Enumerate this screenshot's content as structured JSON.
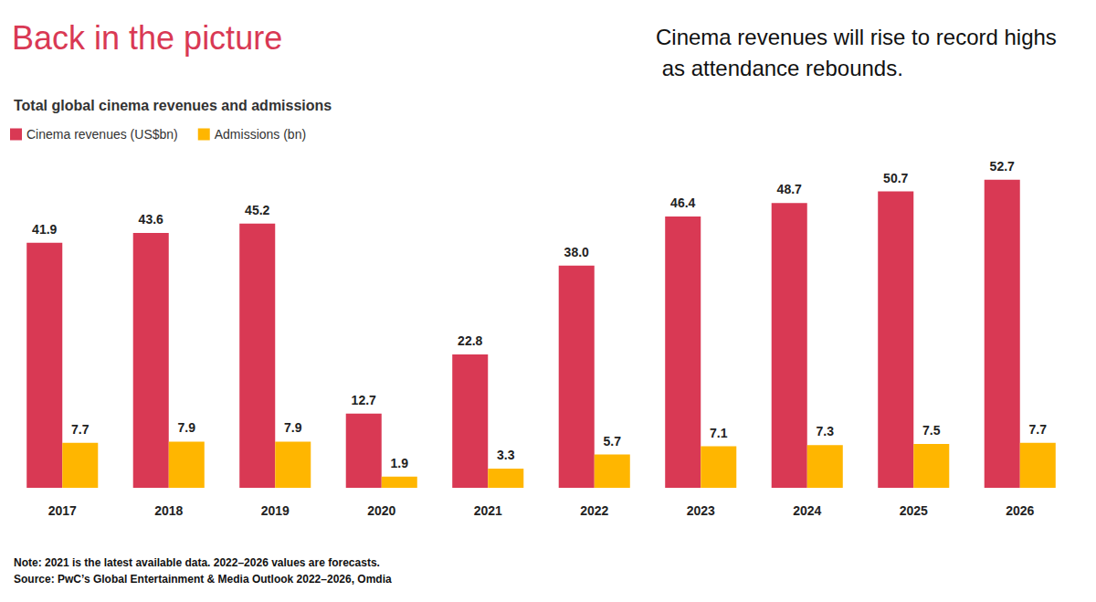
{
  "chart_data": {
    "type": "bar",
    "title": "Back in the picture",
    "subtitle": "Total global cinema revenues and admissions",
    "annotation": "Cinema revenues will rise to record highs as attendance rebounds.",
    "note": "Note: 2021 is the latest available data. 2022–2026 values are forecasts.",
    "source": "Source: PwC’s Global Entertainment & Media Outlook 2022–2026, Omdia",
    "categories": [
      "2017",
      "2018",
      "2019",
      "2020",
      "2021",
      "2022",
      "2023",
      "2024",
      "2025",
      "2026"
    ],
    "series": [
      {
        "name": "Cinema revenues (US$bn)",
        "color": "#d93954",
        "values": [
          41.9,
          43.6,
          45.2,
          12.7,
          22.8,
          38.0,
          46.4,
          48.7,
          50.7,
          52.7
        ],
        "value_labels": [
          "41.9",
          "43.6",
          "45.2",
          "12.7",
          "22.8",
          "38.0",
          "46.4",
          "48.7",
          "50.7",
          "52.7"
        ]
      },
      {
        "name": "Admissions (bn)",
        "color": "#ffb600",
        "values": [
          7.7,
          7.9,
          7.9,
          1.9,
          3.3,
          5.7,
          7.1,
          7.3,
          7.5,
          7.7
        ]
      }
    ],
    "ylim": [
      0,
      55
    ],
    "yticks": [
      0,
      55
    ],
    "grid": false,
    "legend": "top-left",
    "data_labels": true,
    "tick_labels": "x"
  }
}
